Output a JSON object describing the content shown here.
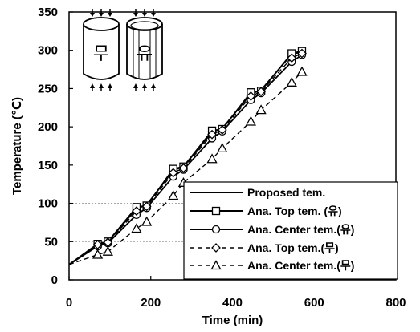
{
  "chart_data": {
    "type": "line",
    "xlabel": "Time (min)",
    "ylabel": "Temperature (℃)",
    "xlim": [
      0,
      800
    ],
    "ylim": [
      0,
      350
    ],
    "xticks": [
      0,
      200,
      400,
      600,
      800
    ],
    "yticks": [
      0,
      50,
      100,
      150,
      200,
      250,
      300,
      350
    ],
    "grid_lines_y": [
      50,
      100
    ],
    "legend_position": "bottom-right",
    "inset_icons": [
      {
        "label": "무",
        "style": "solid"
      },
      {
        "label": "유",
        "style": "ribbed"
      }
    ],
    "series": [
      {
        "name": "Proposed tem.",
        "style": "solid",
        "marker": "none",
        "x": [
          0,
          70,
          95,
          165,
          190,
          255,
          280,
          350,
          375,
          445,
          470,
          545,
          570
        ],
        "y": [
          20,
          45,
          50,
          93,
          98,
          143,
          148,
          193,
          198,
          243,
          248,
          295,
          298
        ]
      },
      {
        "name": "Ana. Top tem. (유)",
        "style": "solid",
        "marker": "square",
        "x": [
          0,
          70,
          95,
          165,
          190,
          255,
          280,
          350,
          375,
          445,
          470,
          545,
          570
        ],
        "y": [
          20,
          47,
          50,
          95,
          97,
          145,
          148,
          195,
          197,
          245,
          247,
          296,
          299
        ]
      },
      {
        "name": "Ana. Center tem.(유)",
        "style": "solid",
        "marker": "circle",
        "x": [
          0,
          70,
          95,
          165,
          190,
          255,
          280,
          350,
          375,
          445,
          470,
          545,
          570
        ],
        "y": [
          20,
          44,
          48,
          85,
          94,
          135,
          144,
          185,
          194,
          235,
          244,
          285,
          294
        ]
      },
      {
        "name": "Ana. Top tem.(무)",
        "style": "dashed",
        "marker": "diamond",
        "x": [
          0,
          70,
          95,
          165,
          190,
          255,
          280,
          350,
          375,
          445,
          470,
          545,
          570
        ],
        "y": [
          20,
          46,
          49,
          90,
          96,
          140,
          146,
          190,
          196,
          240,
          246,
          290,
          296
        ]
      },
      {
        "name": "Ana. Center tem.(무)",
        "style": "dashed",
        "marker": "triangle",
        "x": [
          0,
          70,
          95,
          165,
          190,
          255,
          280,
          350,
          375,
          445,
          470,
          545,
          570
        ],
        "y": [
          20,
          33,
          37,
          67,
          76,
          110,
          127,
          158,
          172,
          207,
          222,
          258,
          272
        ]
      }
    ]
  }
}
